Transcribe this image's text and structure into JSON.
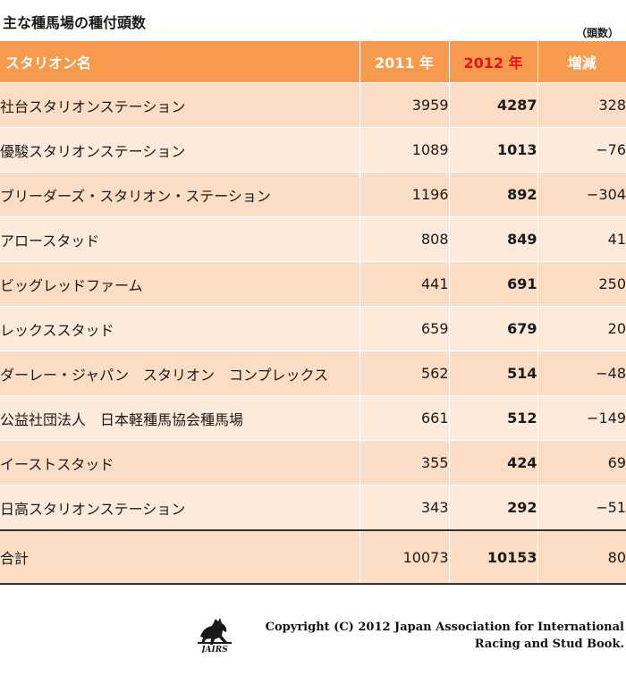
{
  "title": "主な種馬場の種付頭数",
  "unit": "（頭数）",
  "table": {
    "headers": {
      "name": "スタリオン名",
      "y2011": "2011 年",
      "y2012": "2012 年",
      "change": "増減"
    },
    "rows": [
      {
        "name": "社台スタリオンステーション",
        "y2011": "3959",
        "y2012": "4287",
        "change": "328"
      },
      {
        "name": "優駿スタリオンステーション",
        "y2011": "1089",
        "y2012": "1013",
        "change": "−76"
      },
      {
        "name": "ブリーダーズ・スタリオン・ステーション",
        "y2011": "1196",
        "y2012": "892",
        "change": "−304"
      },
      {
        "name": "アロースタッド",
        "y2011": "808",
        "y2012": "849",
        "change": "41"
      },
      {
        "name": "ビッグレッドファーム",
        "y2011": "441",
        "y2012": "691",
        "change": "250"
      },
      {
        "name": "レックススタッド",
        "y2011": "659",
        "y2012": "679",
        "change": "20"
      },
      {
        "name": "ダーレー・ジャパン　スタリオン　コンプレックス",
        "y2011": "562",
        "y2012": "514",
        "change": "−48"
      },
      {
        "name": "公益社団法人　日本軽種馬協会種馬場",
        "y2011": "661",
        "y2012": "512",
        "change": "−149"
      },
      {
        "name": "イーストスタッド",
        "y2011": "355",
        "y2012": "424",
        "change": "69"
      },
      {
        "name": "日高スタリオンステーション",
        "y2011": "343",
        "y2012": "292",
        "change": "−51"
      }
    ],
    "total": {
      "name": "合計",
      "y2011": "10073",
      "y2012": "10153",
      "change": "80"
    }
  },
  "footer": {
    "logo_text": "JAIRS",
    "copyright_line1": "Copyright (C) 2012 Japan Association for International",
    "copyright_line2": "Racing and Stud Book."
  },
  "colors": {
    "header_bg": "#f79a4e",
    "row_odd": "#fcdcc2",
    "row_even": "#fdeadb",
    "highlight_red": "#e8111b"
  }
}
